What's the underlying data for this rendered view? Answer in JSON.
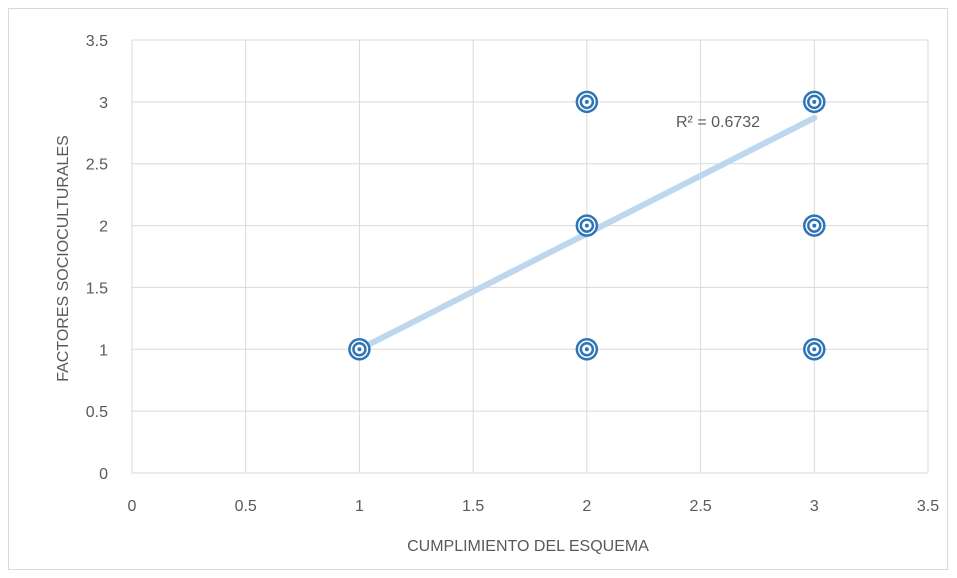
{
  "chart_data": {
    "type": "scatter",
    "title": "",
    "xlabel": "CUMPLIMIENTO DEL ESQUEMA",
    "ylabel": "FACTORES SOCIOCULTURALES",
    "xlim": [
      0,
      3.5
    ],
    "ylim": [
      0,
      3.5
    ],
    "x_ticks": [
      "0",
      "0.5",
      "1",
      "1.5",
      "2",
      "2.5",
      "3",
      "3.5"
    ],
    "y_ticks": [
      "0",
      "0.5",
      "1",
      "1.5",
      "2",
      "2.5",
      "3",
      "3.5"
    ],
    "grid": true,
    "legend": "none",
    "series": [
      {
        "points": [
          {
            "x": 1,
            "y": 1
          },
          {
            "x": 2,
            "y": 1
          },
          {
            "x": 2,
            "y": 2
          },
          {
            "x": 2,
            "y": 3
          },
          {
            "x": 3,
            "y": 1
          },
          {
            "x": 3,
            "y": 2
          },
          {
            "x": 3,
            "y": 3
          }
        ],
        "color": "#2e75b6"
      }
    ],
    "trendline": {
      "type": "linear",
      "from": {
        "x": 1,
        "y": 1
      },
      "to": {
        "x": 3,
        "y": 2.87
      },
      "r2_label": "R² = 0.6732",
      "color": "#bdd7ee"
    },
    "colors": {
      "marker": "#2e75b6",
      "trendline": "#bdd7ee",
      "grid": "#d9d9d9",
      "text": "#595959"
    }
  }
}
